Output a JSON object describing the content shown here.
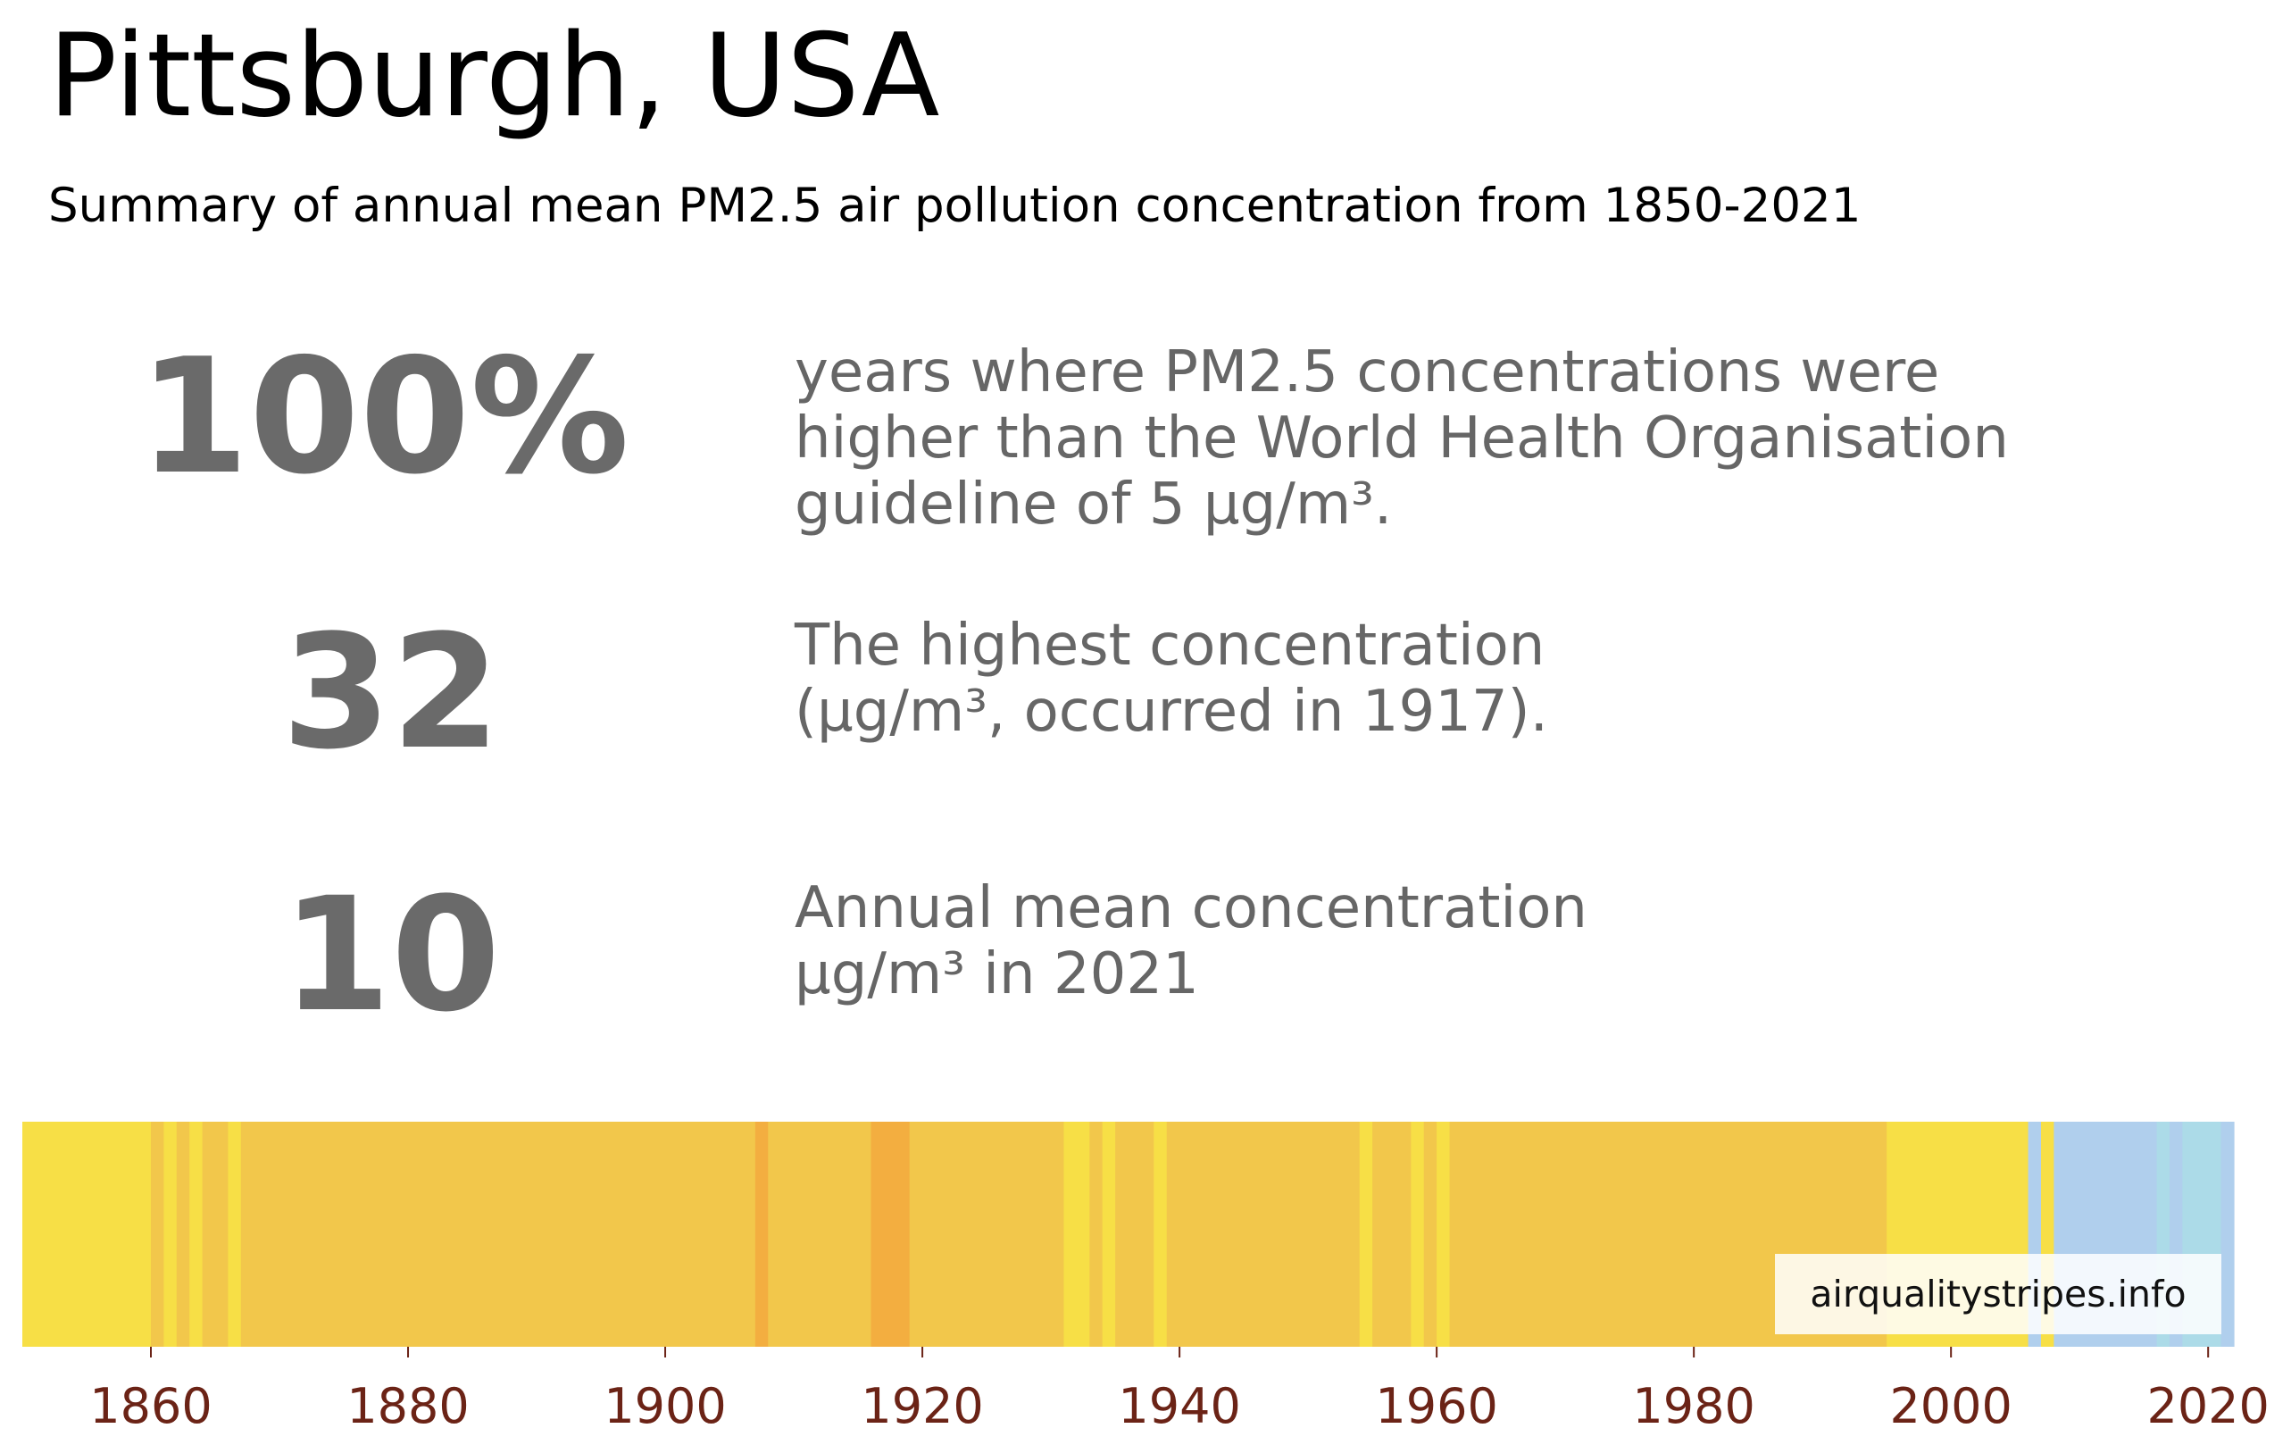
{
  "header": {
    "title": "Pittsburgh, USA",
    "subtitle": "Summary of annual mean PM2.5 air pollution concentration from 1850-2021"
  },
  "stats": [
    {
      "value": "100%",
      "lines": [
        "years where PM2.5 concentrations were",
        "higher than the World Health Organisation",
        "guideline of 5 µg/m³."
      ]
    },
    {
      "value": "32",
      "lines": [
        "The highest concentration",
        "(µg/m³, occurred in 1917)."
      ]
    },
    {
      "value": "10",
      "lines": [
        "Annual mean concentration",
        "µg/m³ in 2021"
      ]
    }
  ],
  "watermark": "airqualitystripes.info",
  "colors": {
    "yellow": "#f7df46",
    "gold": "#f2c74b",
    "orange": "#f3ae40",
    "blue": "#b0cfed",
    "lightblue": "#acdbe8",
    "tick_label": "#6b2316"
  },
  "chart_data": {
    "type": "heatmap",
    "description_of_encoding": "",
    "x_start": 1850,
    "x_end": 2021,
    "xlim": [
      1850,
      2022
    ],
    "xticks": [
      1860,
      1880,
      1900,
      1920,
      1940,
      1960,
      1980,
      2000,
      2020
    ],
    "grid": false,
    "stripes": [
      {
        "from": 1850,
        "to": 1859,
        "color": "yellow"
      },
      {
        "from": 1860,
        "to": 1860,
        "color": "gold"
      },
      {
        "from": 1861,
        "to": 1861,
        "color": "yellow"
      },
      {
        "from": 1862,
        "to": 1862,
        "color": "gold"
      },
      {
        "from": 1863,
        "to": 1863,
        "color": "yellow"
      },
      {
        "from": 1864,
        "to": 1865,
        "color": "gold"
      },
      {
        "from": 1866,
        "to": 1866,
        "color": "yellow"
      },
      {
        "from": 1867,
        "to": 1906,
        "color": "gold"
      },
      {
        "from": 1907,
        "to": 1907,
        "color": "orange"
      },
      {
        "from": 1908,
        "to": 1915,
        "color": "gold"
      },
      {
        "from": 1916,
        "to": 1918,
        "color": "orange"
      },
      {
        "from": 1919,
        "to": 1930,
        "color": "gold"
      },
      {
        "from": 1931,
        "to": 1932,
        "color": "yellow"
      },
      {
        "from": 1933,
        "to": 1933,
        "color": "gold"
      },
      {
        "from": 1934,
        "to": 1934,
        "color": "yellow"
      },
      {
        "from": 1935,
        "to": 1937,
        "color": "gold"
      },
      {
        "from": 1938,
        "to": 1938,
        "color": "yellow"
      },
      {
        "from": 1939,
        "to": 1953,
        "color": "gold"
      },
      {
        "from": 1954,
        "to": 1954,
        "color": "yellow"
      },
      {
        "from": 1955,
        "to": 1957,
        "color": "gold"
      },
      {
        "from": 1958,
        "to": 1958,
        "color": "yellow"
      },
      {
        "from": 1959,
        "to": 1959,
        "color": "gold"
      },
      {
        "from": 1960,
        "to": 1960,
        "color": "yellow"
      },
      {
        "from": 1961,
        "to": 1994,
        "color": "gold"
      },
      {
        "from": 1995,
        "to": 2005,
        "color": "yellow"
      },
      {
        "from": 2006,
        "to": 2006,
        "color": "blue"
      },
      {
        "from": 2007,
        "to": 2007,
        "color": "yellow"
      },
      {
        "from": 2008,
        "to": 2015,
        "color": "blue"
      },
      {
        "from": 2016,
        "to": 2016,
        "color": "lightblue"
      },
      {
        "from": 2017,
        "to": 2017,
        "color": "blue"
      },
      {
        "from": 2018,
        "to": 2020,
        "color": "lightblue"
      },
      {
        "from": 2021,
        "to": 2021,
        "color": "blue"
      }
    ]
  }
}
